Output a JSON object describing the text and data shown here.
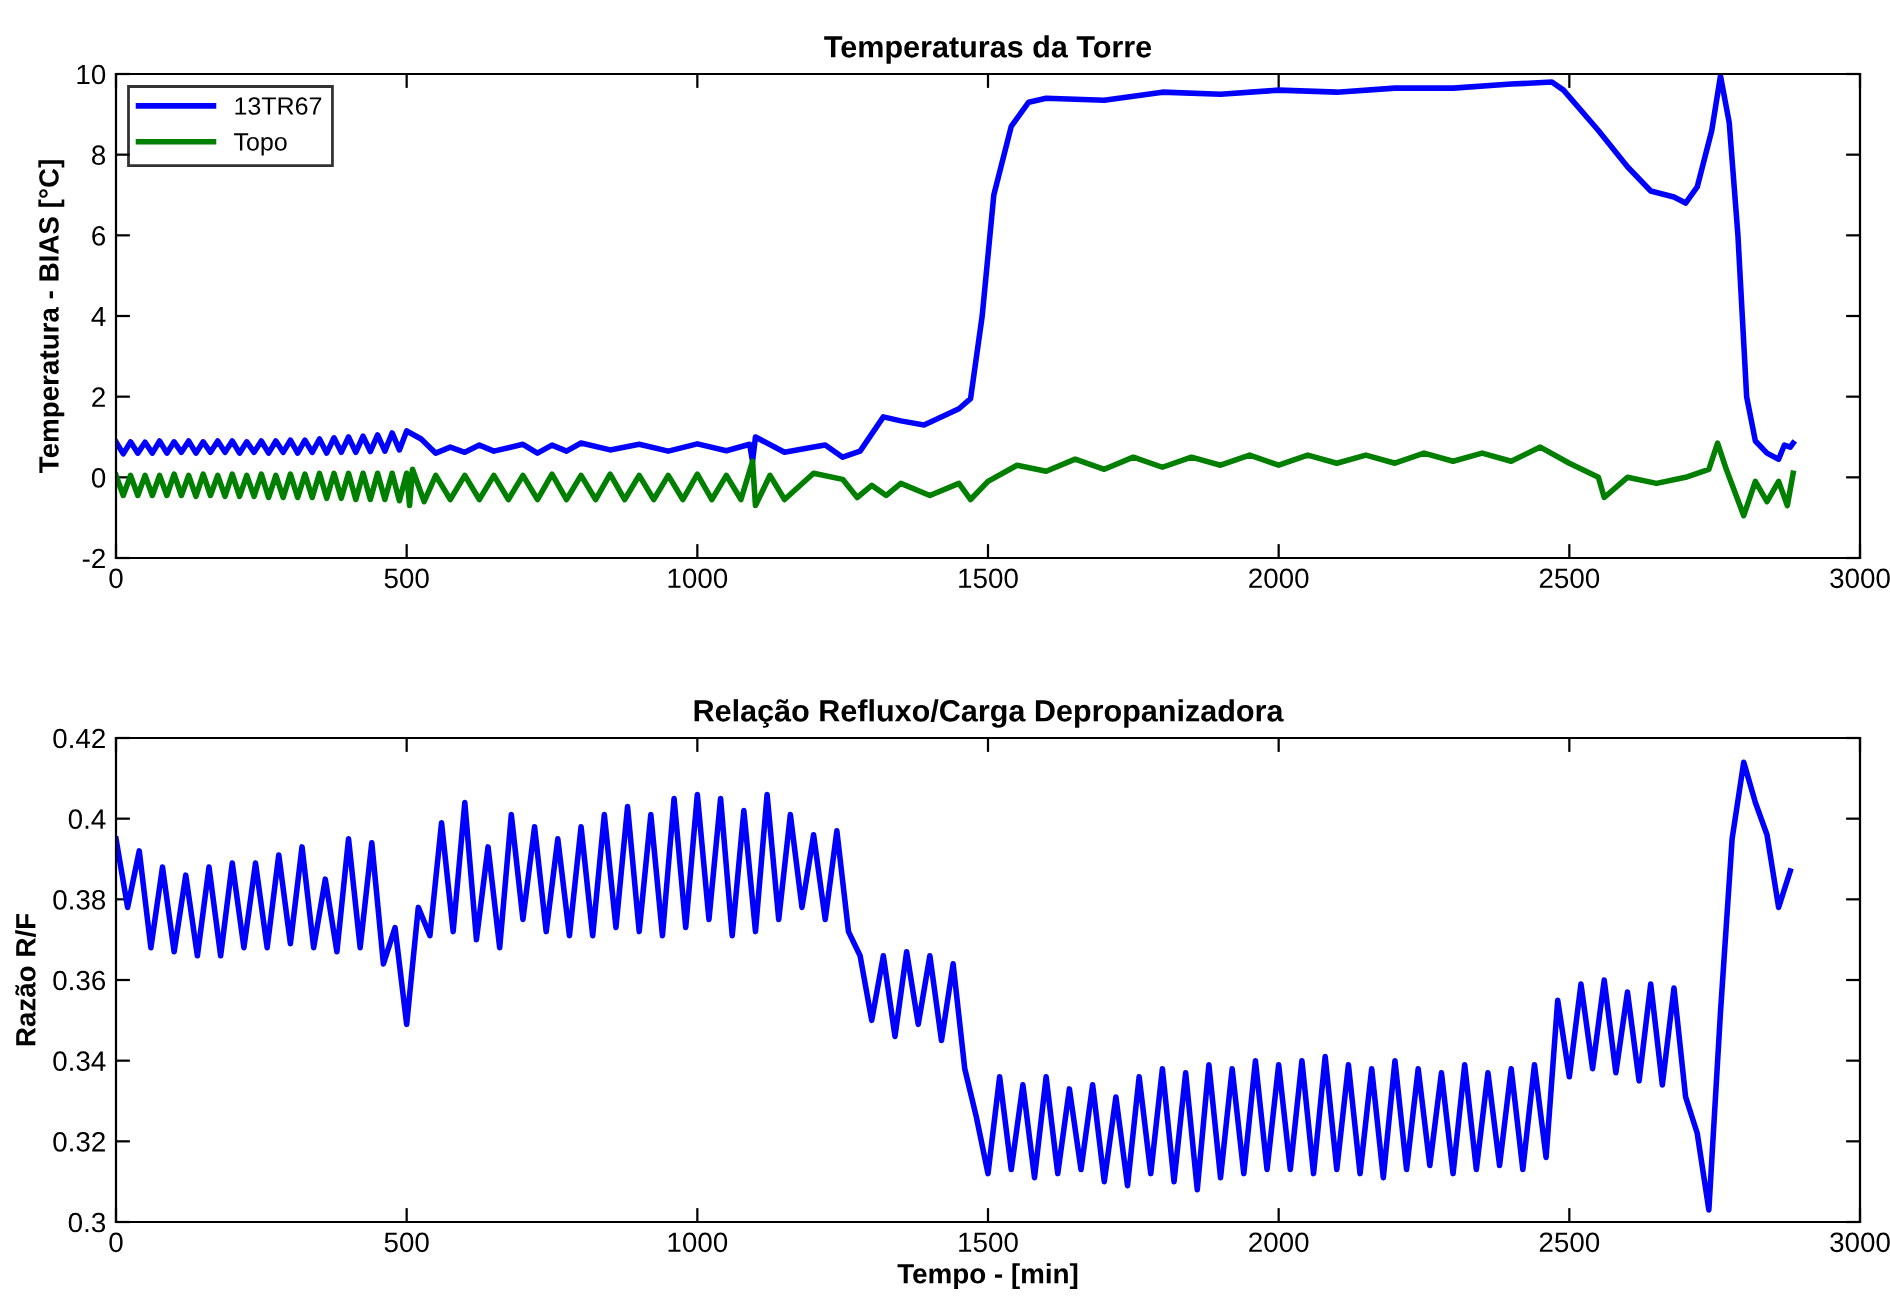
{
  "chart_data": [
    {
      "type": "line",
      "title": "Temperaturas da Torre",
      "ylabel": "Temperatura - BIAS [°C]",
      "xlim": [
        0,
        3000
      ],
      "xticks": [
        0,
        500,
        1000,
        1500,
        2000,
        2500,
        3000
      ],
      "ylim": [
        -2,
        10
      ],
      "yticks": [
        -2,
        0,
        2,
        4,
        6,
        8,
        10
      ],
      "grid": false,
      "legend": "top left",
      "marker": "none",
      "line_style": "solid",
      "series": [
        {
          "name": "13TR67",
          "color": "#0000ff",
          "x": [
            0,
            12.5,
            25,
            37.5,
            50,
            62.5,
            75,
            87.5,
            100,
            112.5,
            125,
            137.5,
            150,
            162.5,
            175,
            187.5,
            200,
            212.5,
            225,
            237.5,
            250,
            262.5,
            275,
            287.5,
            300,
            312.5,
            325,
            337.5,
            350,
            362.5,
            375,
            387.5,
            400,
            412.5,
            425,
            437.5,
            450,
            462.5,
            475,
            487.5,
            500,
            525,
            550,
            575,
            600,
            625,
            650,
            700,
            725,
            750,
            775,
            800,
            850,
            900,
            950,
            1000,
            1050,
            1090,
            1095,
            1100,
            1150,
            1200,
            1220,
            1250,
            1280,
            1320,
            1350,
            1390,
            1450,
            1470,
            1490,
            1510,
            1540,
            1570,
            1600,
            1700,
            1800,
            1900,
            2000,
            2100,
            2200,
            2300,
            2400,
            2470,
            2490,
            2550,
            2600,
            2640,
            2680,
            2700,
            2720,
            2745,
            2760,
            2775,
            2790,
            2805,
            2820,
            2840,
            2860,
            2870,
            2880,
            2885
          ],
          "values": [
            0.88,
            0.58,
            0.88,
            0.6,
            0.87,
            0.6,
            0.9,
            0.6,
            0.88,
            0.62,
            0.9,
            0.6,
            0.88,
            0.62,
            0.9,
            0.62,
            0.9,
            0.6,
            0.88,
            0.62,
            0.9,
            0.6,
            0.9,
            0.62,
            0.92,
            0.6,
            0.92,
            0.62,
            0.95,
            0.6,
            0.98,
            0.62,
            1.0,
            0.62,
            1.02,
            0.64,
            1.05,
            0.65,
            1.1,
            0.68,
            1.15,
            0.95,
            0.6,
            0.75,
            0.62,
            0.8,
            0.65,
            0.82,
            0.6,
            0.8,
            0.65,
            0.85,
            0.68,
            0.82,
            0.65,
            0.83,
            0.66,
            0.82,
            0.4,
            1.0,
            0.62,
            0.75,
            0.8,
            0.5,
            0.65,
            1.5,
            1.4,
            1.3,
            1.7,
            1.95,
            4.0,
            7.0,
            8.7,
            9.3,
            9.4,
            9.35,
            9.55,
            9.5,
            9.6,
            9.55,
            9.65,
            9.65,
            9.75,
            9.8,
            9.6,
            8.6,
            7.7,
            7.1,
            6.95,
            6.8,
            7.2,
            8.6,
            9.95,
            8.8,
            6.0,
            2.0,
            0.9,
            0.6,
            0.45,
            0.8,
            0.75,
            0.85
          ]
        },
        {
          "name": "Topo",
          "color": "#007f00",
          "x": [
            0,
            12.5,
            25,
            37.5,
            50,
            62.5,
            75,
            87.5,
            100,
            112.5,
            125,
            137.5,
            150,
            162.5,
            175,
            187.5,
            200,
            212.5,
            225,
            237.5,
            250,
            262.5,
            275,
            287.5,
            300,
            312.5,
            325,
            337.5,
            350,
            362.5,
            375,
            387.5,
            400,
            412.5,
            425,
            437.5,
            450,
            462.5,
            475,
            487.5,
            500,
            505,
            510,
            530,
            550,
            575,
            600,
            625,
            650,
            675,
            700,
            725,
            750,
            775,
            800,
            825,
            850,
            875,
            900,
            925,
            950,
            975,
            1000,
            1025,
            1050,
            1075,
            1095,
            1100,
            1125,
            1150,
            1200,
            1250,
            1275,
            1300,
            1325,
            1350,
            1400,
            1450,
            1470,
            1500,
            1550,
            1600,
            1650,
            1700,
            1750,
            1800,
            1850,
            1900,
            1950,
            2000,
            2050,
            2100,
            2150,
            2200,
            2250,
            2300,
            2350,
            2400,
            2450,
            2500,
            2550,
            2560,
            2600,
            2650,
            2700,
            2740,
            2755,
            2770,
            2800,
            2820,
            2840,
            2860,
            2875,
            2885
          ],
          "values": [
            0.05,
            -0.45,
            0.05,
            -0.45,
            0.05,
            -0.45,
            0.05,
            -0.45,
            0.08,
            -0.45,
            0.05,
            -0.47,
            0.08,
            -0.45,
            0.05,
            -0.47,
            0.08,
            -0.47,
            0.05,
            -0.47,
            0.08,
            -0.5,
            0.05,
            -0.5,
            0.08,
            -0.5,
            0.08,
            -0.5,
            0.1,
            -0.52,
            0.1,
            -0.52,
            0.1,
            -0.55,
            0.1,
            -0.55,
            0.1,
            -0.55,
            0.1,
            -0.58,
            0.1,
            -0.7,
            0.2,
            -0.6,
            0.05,
            -0.55,
            0.05,
            -0.55,
            0.05,
            -0.55,
            0.05,
            -0.55,
            0.08,
            -0.55,
            0.05,
            -0.55,
            0.08,
            -0.55,
            0.05,
            -0.55,
            0.05,
            -0.55,
            0.08,
            -0.55,
            0.05,
            -0.55,
            0.4,
            -0.7,
            0.05,
            -0.55,
            0.1,
            -0.05,
            -0.5,
            -0.2,
            -0.45,
            -0.15,
            -0.45,
            -0.15,
            -0.55,
            -0.1,
            0.3,
            0.15,
            0.45,
            0.2,
            0.5,
            0.25,
            0.5,
            0.3,
            0.55,
            0.3,
            0.55,
            0.35,
            0.55,
            0.35,
            0.6,
            0.4,
            0.6,
            0.4,
            0.75,
            0.35,
            0.0,
            -0.5,
            0.0,
            -0.15,
            0.0,
            0.2,
            0.85,
            0.2,
            -0.95,
            -0.1,
            -0.6,
            -0.1,
            -0.7,
            0.1
          ]
        }
      ]
    },
    {
      "type": "line",
      "title": "Relação Refluxo/Carga Depropanizadora",
      "xlabel": "Tempo - [min]",
      "ylabel": "Razão R/F",
      "xlim": [
        0,
        3000
      ],
      "xticks": [
        0,
        500,
        1000,
        1500,
        2000,
        2500,
        3000
      ],
      "ylim": [
        0.3,
        0.42
      ],
      "yticks": [
        0.3,
        0.32,
        0.34,
        0.36,
        0.38,
        0.4,
        0.42
      ],
      "grid": false,
      "marker": "none",
      "line_style": "solid",
      "series": [
        {
          "color": "#0000ff",
          "x": [
            0,
            20,
            40,
            60,
            80,
            100,
            120,
            140,
            160,
            180,
            200,
            220,
            240,
            260,
            280,
            300,
            320,
            340,
            360,
            380,
            400,
            420,
            440,
            460,
            480,
            500,
            520,
            540,
            560,
            580,
            600,
            620,
            640,
            660,
            680,
            700,
            720,
            740,
            760,
            780,
            800,
            820,
            840,
            860,
            880,
            900,
            920,
            940,
            960,
            980,
            1000,
            1020,
            1040,
            1060,
            1080,
            1100,
            1120,
            1140,
            1160,
            1180,
            1200,
            1220,
            1240,
            1260,
            1280,
            1300,
            1320,
            1340,
            1360,
            1380,
            1400,
            1420,
            1440,
            1460,
            1480,
            1500,
            1520,
            1540,
            1560,
            1580,
            1600,
            1620,
            1640,
            1660,
            1680,
            1700,
            1720,
            1740,
            1760,
            1780,
            1800,
            1820,
            1840,
            1860,
            1880,
            1900,
            1920,
            1940,
            1960,
            1980,
            2000,
            2020,
            2040,
            2060,
            2080,
            2100,
            2120,
            2140,
            2160,
            2180,
            2200,
            2220,
            2240,
            2260,
            2280,
            2300,
            2320,
            2340,
            2360,
            2380,
            2400,
            2420,
            2440,
            2460,
            2480,
            2500,
            2520,
            2540,
            2560,
            2580,
            2600,
            2620,
            2640,
            2660,
            2680,
            2700,
            2720,
            2740,
            2760,
            2780,
            2800,
            2820,
            2840,
            2860,
            2880
          ],
          "values": [
            0.395,
            0.378,
            0.392,
            0.368,
            0.388,
            0.367,
            0.386,
            0.366,
            0.388,
            0.366,
            0.389,
            0.368,
            0.389,
            0.368,
            0.391,
            0.369,
            0.393,
            0.368,
            0.385,
            0.367,
            0.395,
            0.368,
            0.394,
            0.364,
            0.373,
            0.349,
            0.378,
            0.371,
            0.399,
            0.372,
            0.404,
            0.37,
            0.393,
            0.368,
            0.401,
            0.375,
            0.398,
            0.372,
            0.395,
            0.371,
            0.398,
            0.371,
            0.401,
            0.373,
            0.403,
            0.372,
            0.401,
            0.371,
            0.405,
            0.373,
            0.406,
            0.375,
            0.405,
            0.371,
            0.402,
            0.372,
            0.406,
            0.375,
            0.401,
            0.378,
            0.396,
            0.375,
            0.397,
            0.372,
            0.366,
            0.35,
            0.366,
            0.346,
            0.367,
            0.349,
            0.366,
            0.345,
            0.364,
            0.338,
            0.326,
            0.312,
            0.336,
            0.313,
            0.334,
            0.311,
            0.336,
            0.312,
            0.333,
            0.313,
            0.334,
            0.31,
            0.331,
            0.309,
            0.336,
            0.312,
            0.338,
            0.31,
            0.337,
            0.308,
            0.339,
            0.311,
            0.338,
            0.312,
            0.34,
            0.313,
            0.339,
            0.313,
            0.34,
            0.312,
            0.341,
            0.313,
            0.339,
            0.312,
            0.338,
            0.311,
            0.34,
            0.313,
            0.338,
            0.314,
            0.337,
            0.312,
            0.339,
            0.313,
            0.337,
            0.314,
            0.338,
            0.313,
            0.339,
            0.316,
            0.355,
            0.336,
            0.359,
            0.338,
            0.36,
            0.337,
            0.357,
            0.335,
            0.359,
            0.334,
            0.358,
            0.331,
            0.322,
            0.303,
            0.352,
            0.395,
            0.414,
            0.404,
            0.396,
            0.378,
            0.387
          ]
        }
      ]
    }
  ]
}
